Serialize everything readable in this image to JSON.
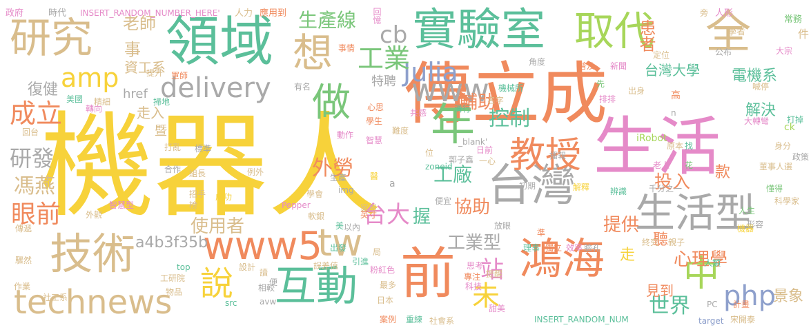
{
  "palette": {
    "yellow": "#f7d23a",
    "orange": "#f08a5d",
    "green": "#7ac67a",
    "teal": "#5bbf9a",
    "tan": "#d9bd8c",
    "gray": "#a9a9a9",
    "pink": "#e58ac8",
    "blue": "#8ea0cc",
    "lime": "#a7d65a"
  },
  "words": [
    {
      "id": "w1",
      "text": "機器人",
      "c": "yellow"
    },
    {
      "id": "w2",
      "text": "傳立成",
      "c": "orange"
    },
    {
      "id": "w3",
      "text": "生活",
      "c": "pink"
    },
    {
      "id": "w4",
      "text": "領域",
      "c": "teal"
    },
    {
      "id": "w5",
      "text": "實驗室",
      "c": "teal"
    },
    {
      "id": "w6",
      "text": "取代",
      "c": "lime"
    },
    {
      "id": "w7",
      "text": "全",
      "c": "tan"
    },
    {
      "id": "w8",
      "text": "研究",
      "c": "tan"
    },
    {
      "id": "w9",
      "text": "技術",
      "c": "tan"
    },
    {
      "id": "w10",
      "text": "鴻海",
      "c": "orange"
    },
    {
      "id": "w11",
      "text": "台灣",
      "c": "gray"
    },
    {
      "id": "w12",
      "text": "生活型",
      "c": "gray"
    },
    {
      "id": "w13",
      "text": "前",
      "c": "orange"
    },
    {
      "id": "w14",
      "text": "互動",
      "c": "teal"
    },
    {
      "id": "w15",
      "text": "technews",
      "c": "tan"
    },
    {
      "id": "w16",
      "text": "www5",
      "c": "orange"
    },
    {
      "id": "w17",
      "text": "年",
      "c": "green"
    },
    {
      "id": "w18",
      "text": "做",
      "c": "green"
    },
    {
      "id": "w19",
      "text": "教授",
      "c": "orange"
    },
    {
      "id": "w20",
      "text": "中",
      "c": "lime"
    },
    {
      "id": "w21",
      "text": "想",
      "c": "tan"
    },
    {
      "id": "w22",
      "text": "說",
      "c": "yellow"
    },
    {
      "id": "w23",
      "text": "tw",
      "c": "tan"
    },
    {
      "id": "w24",
      "text": "www",
      "c": "gray"
    },
    {
      "id": "w25",
      "text": "Julia",
      "c": "blue"
    },
    {
      "id": "w26",
      "text": "delivery",
      "c": "gray"
    },
    {
      "id": "w27",
      "text": "php",
      "c": "blue"
    },
    {
      "id": "w28",
      "text": "amp",
      "c": "yellow"
    },
    {
      "id": "w29",
      "text": "工業",
      "c": "green"
    },
    {
      "id": "w30",
      "text": "生產線",
      "c": "green"
    },
    {
      "id": "w31",
      "text": "cb",
      "c": "gray"
    },
    {
      "id": "w32",
      "text": "成立",
      "c": "orange"
    },
    {
      "id": "w33",
      "text": "研發",
      "c": "gray"
    },
    {
      "id": "w34",
      "text": "眼前",
      "c": "orange"
    },
    {
      "id": "w35",
      "text": "馮燕",
      "c": "tan"
    },
    {
      "id": "w36",
      "text": "台大",
      "c": "pink"
    },
    {
      "id": "w37",
      "text": "站",
      "c": "pink"
    },
    {
      "id": "w38",
      "text": "未",
      "c": "yellow"
    },
    {
      "id": "w39",
      "text": "工廠",
      "c": "teal"
    },
    {
      "id": "w40",
      "text": "外勞",
      "c": "orange"
    },
    {
      "id": "w41",
      "text": "控制",
      "c": "teal"
    },
    {
      "id": "w42",
      "text": "輔助",
      "c": "orange"
    },
    {
      "id": "w43",
      "text": "投入",
      "c": "orange"
    },
    {
      "id": "w44",
      "text": "心理學",
      "c": "orange"
    },
    {
      "id": "w45",
      "text": "世界",
      "c": "teal"
    },
    {
      "id": "w46",
      "text": "提供",
      "c": "orange"
    },
    {
      "id": "w47",
      "text": "協助",
      "c": "orange"
    },
    {
      "id": "w48",
      "text": "工業型",
      "c": "gray"
    },
    {
      "id": "w49",
      "text": "使用者",
      "c": "tan"
    },
    {
      "id": "w50",
      "text": "a4b3f35b",
      "c": "gray"
    },
    {
      "id": "w51",
      "text": "老師",
      "c": "tan"
    },
    {
      "id": "w52",
      "text": "事",
      "c": "tan"
    },
    {
      "id": "w53",
      "text": "資工系",
      "c": "tan"
    },
    {
      "id": "w54",
      "text": "復健",
      "c": "gray"
    },
    {
      "id": "w55",
      "text": "患者",
      "c": "orange"
    },
    {
      "id": "w56",
      "text": "台灣大學",
      "c": "teal"
    },
    {
      "id": "w57",
      "text": "電機系",
      "c": "teal"
    },
    {
      "id": "w58",
      "text": "解決",
      "c": "teal"
    },
    {
      "id": "w59",
      "text": "握",
      "c": "teal"
    },
    {
      "id": "w60",
      "text": "走",
      "c": "yellow"
    },
    {
      "id": "w61",
      "text": "聽",
      "c": "orange"
    },
    {
      "id": "w62",
      "text": "見到",
      "c": "orange"
    },
    {
      "id": "w63",
      "text": "景象",
      "c": "tan"
    },
    {
      "id": "w64",
      "text": "款",
      "c": "orange"
    },
    {
      "id": "w65",
      "text": "特聘",
      "c": "gray"
    },
    {
      "id": "w66",
      "text": "走入",
      "c": "tan"
    },
    {
      "id": "w67",
      "text": "href",
      "c": "gray"
    },
    {
      "id": "w68",
      "text": "暨",
      "c": "tan"
    },
    {
      "id": "w69",
      "text": "政府",
      "c": "pink"
    },
    {
      "id": "w70",
      "text": "時代",
      "c": "gray"
    },
    {
      "id": "w71",
      "text": "INSERT_RANDOM_NUMBER_HERE'",
      "c": "pink"
    },
    {
      "id": "w72",
      "text": "人力",
      "c": "tan"
    },
    {
      "id": "w73",
      "text": "應用到",
      "c": "orange"
    },
    {
      "id": "w74",
      "text": "回憶",
      "c": "pink"
    },
    {
      "id": "w75",
      "text": "事情",
      "c": "orange"
    },
    {
      "id": "w76",
      "text": "普及",
      "c": "orange"
    },
    {
      "id": "w77",
      "text": "旁",
      "c": "tan"
    },
    {
      "id": "w78",
      "text": "人形",
      "c": "pink"
    },
    {
      "id": "w79",
      "text": "學者",
      "c": "tan"
    },
    {
      "id": "w80",
      "text": "常務",
      "c": "green"
    },
    {
      "id": "w81",
      "text": "件",
      "c": "tan"
    },
    {
      "id": "w82",
      "text": "大宗",
      "c": "pink"
    },
    {
      "id": "w83",
      "text": "定位",
      "c": "tan"
    },
    {
      "id": "w84",
      "text": "公布",
      "c": "gray"
    },
    {
      "id": "w85",
      "text": "喊停",
      "c": "tan"
    },
    {
      "id": "w86",
      "text": "提升",
      "c": "tan"
    },
    {
      "id": "w87",
      "text": "軍師",
      "c": "orange"
    },
    {
      "id": "w88",
      "text": "角度",
      "c": "gray"
    },
    {
      "id": "w89",
      "text": "機械所",
      "c": "teal"
    },
    {
      "id": "w90",
      "text": "新聞",
      "c": "pink"
    },
    {
      "id": "w91",
      "text": "出身",
      "c": "tan"
    },
    {
      "id": "w92",
      "text": "高",
      "c": "orange"
    },
    {
      "id": "w93",
      "text": "n",
      "c": "gray"
    },
    {
      "id": "w94",
      "text": "先",
      "c": "green"
    },
    {
      "id": "w95",
      "text": "名字",
      "c": "tan"
    },
    {
      "id": "w96",
      "text": "排排",
      "c": "pink"
    },
    {
      "id": "w97",
      "text": "轉向",
      "c": "pink"
    },
    {
      "id": "w98",
      "text": "美國",
      "c": "teal"
    },
    {
      "id": "w99",
      "text": "精細",
      "c": "tan"
    },
    {
      "id": "w100",
      "text": "掃地",
      "c": "teal"
    },
    {
      "id": "w101",
      "text": "有名",
      "c": "gray"
    },
    {
      "id": "w102",
      "text": "心思",
      "c": "orange"
    },
    {
      "id": "w103",
      "text": "共感",
      "c": "pink"
    },
    {
      "id": "w104",
      "text": "滑行",
      "c": "teal"
    },
    {
      "id": "w105",
      "text": "學生",
      "c": "orange"
    },
    {
      "id": "w106",
      "text": "動作",
      "c": "pink"
    },
    {
      "id": "w107",
      "text": "難度",
      "c": "tan"
    },
    {
      "id": "w108",
      "text": "智慧",
      "c": "pink"
    },
    {
      "id": "w109",
      "text": "大轉彎",
      "c": "pink"
    },
    {
      "id": "w110",
      "text": "打掉",
      "c": "teal"
    },
    {
      "id": "w111",
      "text": "ck",
      "c": "lime"
    },
    {
      "id": "w112",
      "text": "身分",
      "c": "tan"
    },
    {
      "id": "w113",
      "text": "政策",
      "c": "gray"
    },
    {
      "id": "w114",
      "text": "回台",
      "c": "tan"
    },
    {
      "id": "w115",
      "text": "打亂",
      "c": "tan"
    },
    {
      "id": "w116",
      "text": "標準",
      "c": "gray"
    },
    {
      "id": "w117",
      "text": "_blank'",
      "c": "gray"
    },
    {
      "id": "w118",
      "text": "日前",
      "c": "pink"
    },
    {
      "id": "w119",
      "text": "播報",
      "c": "gray"
    },
    {
      "id": "w120",
      "text": "iRobot",
      "c": "lime"
    },
    {
      "id": "w121",
      "text": "原本",
      "c": "tan"
    },
    {
      "id": "w122",
      "text": "找",
      "c": "teal"
    },
    {
      "id": "w123",
      "text": "董事人選",
      "c": "tan"
    },
    {
      "id": "w124",
      "text": "位",
      "c": "tan"
    },
    {
      "id": "w125",
      "text": "郭子鑫",
      "c": "gray"
    },
    {
      "id": "w126",
      "text": "一心",
      "c": "tan"
    },
    {
      "id": "w127",
      "text": "合作",
      "c": "gray"
    },
    {
      "id": "w128",
      "text": "例外",
      "c": "tan"
    },
    {
      "id": "w129",
      "text": "zoneid",
      "c": "teal"
    },
    {
      "id": "w130",
      "text": "老人",
      "c": "pink"
    },
    {
      "id": "w131",
      "text": "花",
      "c": "green"
    },
    {
      "id": "w132",
      "text": "組長",
      "c": "tan"
    },
    {
      "id": "w133",
      "text": "招手",
      "c": "tan"
    },
    {
      "id": "w134",
      "text": "榜",
      "c": "tan"
    },
    {
      "id": "w135",
      "text": "成功",
      "c": "yellow"
    },
    {
      "id": "w136",
      "text": "學會",
      "c": "tan"
    },
    {
      "id": "w137",
      "text": "生產",
      "c": "gray"
    },
    {
      "id": "w138",
      "text": "醫",
      "c": "yellow"
    },
    {
      "id": "w139",
      "text": "a",
      "c": "gray"
    },
    {
      "id": "w140",
      "text": "初期",
      "c": "gray"
    },
    {
      "id": "w141",
      "text": "辨識",
      "c": "teal"
    },
    {
      "id": "w142",
      "text": "千分之一",
      "c": "gray"
    },
    {
      "id": "w143",
      "text": "懂得",
      "c": "green"
    },
    {
      "id": "w144",
      "text": "解釋",
      "c": "yellow"
    },
    {
      "id": "w145",
      "text": "科學家",
      "c": "tan"
    },
    {
      "id": "w146",
      "text": "img",
      "c": "gray"
    },
    {
      "id": "w147",
      "text": "智慧型",
      "c": "pink"
    },
    {
      "id": "w148",
      "text": "外觀",
      "c": "tan"
    },
    {
      "id": "w149",
      "text": "傳遞",
      "c": "tan"
    },
    {
      "id": "w150",
      "text": "Pepper",
      "c": "pink"
    },
    {
      "id": "w151",
      "text": "軟銀",
      "c": "tan"
    },
    {
      "id": "w152",
      "text": "家用",
      "c": "tan"
    },
    {
      "id": "w153",
      "text": "便宜",
      "c": "gray"
    },
    {
      "id": "w154",
      "text": "英寸",
      "c": "orange"
    },
    {
      "id": "w155",
      "text": "美",
      "c": "teal"
    },
    {
      "id": "w156",
      "text": "以內",
      "c": "gray"
    },
    {
      "id": "w157",
      "text": "放眼",
      "c": "gray"
    },
    {
      "id": "w158",
      "text": "人生",
      "c": "green"
    },
    {
      "id": "w159",
      "text": "形容",
      "c": "gray"
    },
    {
      "id": "w160",
      "text": "機器",
      "c": "yellow"
    },
    {
      "id": "w161",
      "text": "出發",
      "c": "teal"
    },
    {
      "id": "w162",
      "text": "局",
      "c": "tan"
    },
    {
      "id": "w163",
      "text": "準",
      "c": "orange"
    },
    {
      "id": "w164",
      "text": "理事",
      "c": "teal"
    },
    {
      "id": "w165",
      "text": "獨立",
      "c": "orange"
    },
    {
      "id": "w166",
      "text": "效率",
      "c": "pink"
    },
    {
      "id": "w167",
      "text": "臉孔",
      "c": "gray"
    },
    {
      "id": "w168",
      "text": "終究",
      "c": "tan"
    },
    {
      "id": "w169",
      "text": "親子",
      "c": "tan"
    },
    {
      "id": "w170",
      "text": "驟然",
      "c": "tan"
    },
    {
      "id": "w171",
      "text": "top",
      "c": "teal"
    },
    {
      "id": "w172",
      "text": "設計",
      "c": "tan"
    },
    {
      "id": "w173",
      "text": "誤差值",
      "c": "tan"
    },
    {
      "id": "w174",
      "text": "引進",
      "c": "teal"
    },
    {
      "id": "w175",
      "text": "粉紅色",
      "c": "pink"
    },
    {
      "id": "w176",
      "text": "思考",
      "c": "pink"
    },
    {
      "id": "w177",
      "text": "人類",
      "c": "teal"
    },
    {
      "id": "w178",
      "text": "工研院",
      "c": "tan"
    },
    {
      "id": "w179",
      "text": "讀",
      "c": "tan"
    },
    {
      "id": "w180",
      "text": "專注",
      "c": "orange"
    },
    {
      "id": "w181",
      "text": "提醒",
      "c": "tan"
    },
    {
      "id": "w182",
      "text": "科技",
      "c": "pink"
    },
    {
      "id": "w183",
      "text": "作業",
      "c": "tan"
    },
    {
      "id": "w184",
      "text": "相較",
      "c": "gray"
    },
    {
      "id": "w185",
      "text": "便",
      "c": "gray"
    },
    {
      "id": "w186",
      "text": "最多",
      "c": "tan"
    },
    {
      "id": "w187",
      "text": "物品",
      "c": "tan"
    },
    {
      "id": "w188",
      "text": "計畫",
      "c": "orange"
    },
    {
      "id": "w189",
      "text": "PC",
      "c": "gray"
    },
    {
      "id": "w190",
      "text": "社工系",
      "c": "tan"
    },
    {
      "id": "w191",
      "text": "src",
      "c": "teal"
    },
    {
      "id": "w192",
      "text": "avw",
      "c": "gray"
    },
    {
      "id": "w193",
      "text": "日本",
      "c": "tan"
    },
    {
      "id": "w194",
      "text": "案例",
      "c": "orange"
    },
    {
      "id": "w195",
      "text": "重練",
      "c": "teal"
    },
    {
      "id": "w196",
      "text": "社會系",
      "c": "tan"
    },
    {
      "id": "w197",
      "text": "甜美",
      "c": "pink"
    },
    {
      "id": "w198",
      "text": "INSERT_RANDOM_NUM",
      "c": "teal"
    },
    {
      "id": "w199",
      "text": "target",
      "c": "blue"
    },
    {
      "id": "w200",
      "text": "宋開泰",
      "c": "tan"
    }
  ]
}
